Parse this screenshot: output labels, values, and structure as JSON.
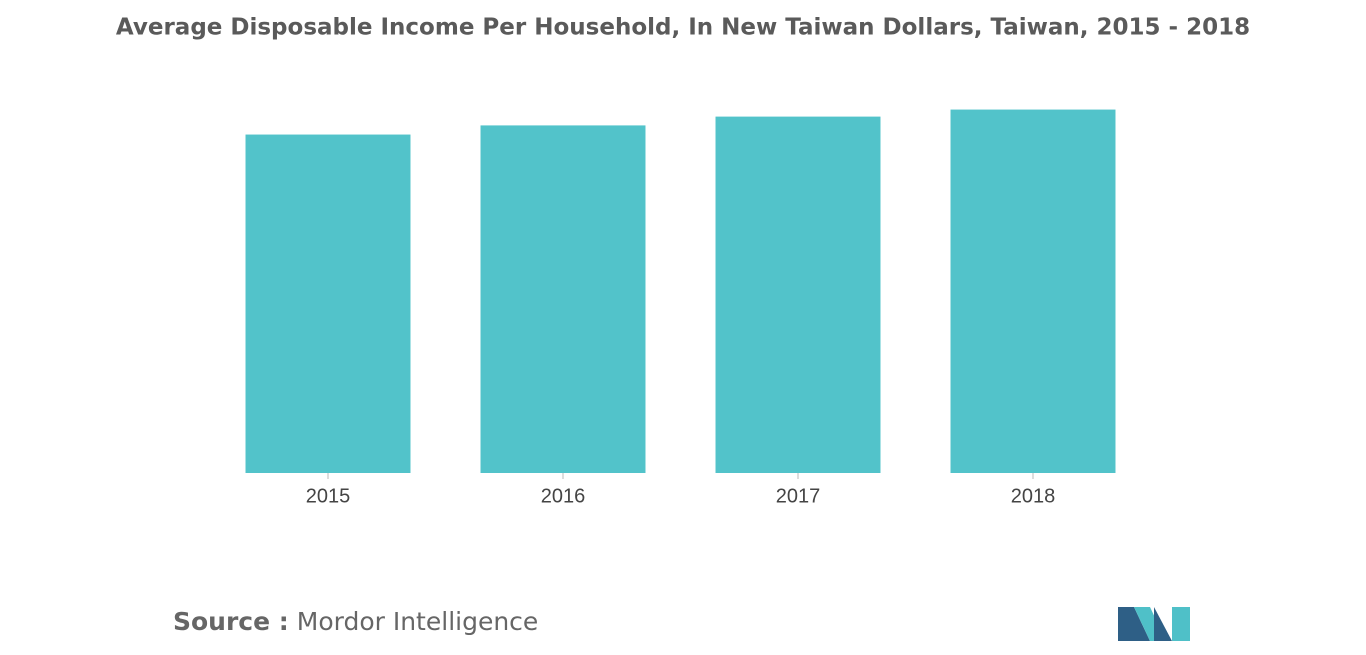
{
  "chart_data": {
    "type": "bar",
    "title": "Average Disposable Income Per Household, In New Taiwan Dollars, Taiwan, 2015 - 2018",
    "categories": [
      "2015",
      "2016",
      "2017",
      "2018"
    ],
    "values": [
      962000,
      988000,
      1013000,
      1033000
    ],
    "color": "#52c3ca",
    "ylim": [
      0,
      1100000
    ]
  },
  "source_label": "Source :",
  "source": "Mordor Intelligence"
}
